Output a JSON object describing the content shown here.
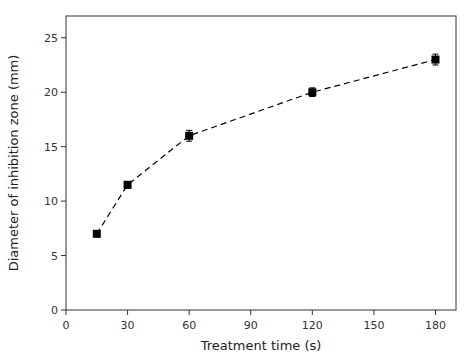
{
  "chart_data": {
    "type": "line",
    "xlabel": "Treatment time (s)",
    "ylabel": "Diameter of inhibition zone (mm)",
    "x": [
      15,
      30,
      60,
      120,
      180
    ],
    "values": [
      7.0,
      11.5,
      16.0,
      20.0,
      23.0
    ],
    "errors": [
      0.3,
      0.3,
      0.5,
      0.4,
      0.5
    ],
    "color": "#000000",
    "marker": "square",
    "line_style": "dashed",
    "xlim": [
      0,
      190
    ],
    "ylim": [
      0,
      27
    ],
    "xticks": [
      0,
      30,
      60,
      90,
      120,
      150,
      180
    ],
    "yticks": [
      0,
      5,
      10,
      15,
      20,
      25
    ],
    "grid": false
  }
}
